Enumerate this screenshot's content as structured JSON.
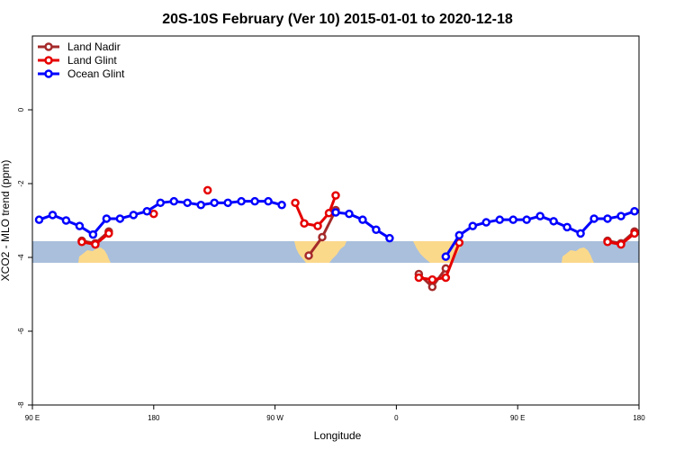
{
  "chart_data": {
    "type": "line",
    "title": "20S-10S February (Ver 10)   2015-01-01 to 2020-12-18",
    "xlabel": "Longitude",
    "ylabel": "XCO2 - MLO trend (ppm)",
    "xlim": [
      -90,
      180
    ],
    "ylim": [
      -8,
      2
    ],
    "x_ticks": [
      {
        "value": -90,
        "label": "90 E"
      },
      {
        "value": -36,
        "label": "180"
      },
      {
        "value": 18,
        "label": "90 W"
      },
      {
        "value": 72,
        "label": "0"
      },
      {
        "value": 126,
        "label": "90 E"
      },
      {
        "value": 180,
        "label": "180"
      }
    ],
    "y_ticks": [
      0,
      -2,
      -4,
      -6,
      -8
    ],
    "legend_position": "top-left",
    "series": [
      {
        "name": "Land Nadir",
        "color": "#a52a2a",
        "segments": [
          [
            [
              -68,
              -3.55
            ],
            [
              -62,
              -3.62
            ],
            [
              -56,
              -3.3
            ]
          ],
          [
            [
              33,
              -3.95
            ],
            [
              39,
              -3.45
            ],
            [
              45,
              -2.72
            ]
          ],
          [
            [
              82,
              -4.45
            ],
            [
              88,
              -4.8
            ],
            [
              94,
              -4.3
            ]
          ],
          [
            [
              166,
              -3.55
            ],
            [
              172,
              -3.62
            ],
            [
              178,
              -3.3
            ]
          ]
        ]
      },
      {
        "name": "Land Glint",
        "color": "#e60000",
        "segments": [
          [
            [
              -68,
              -3.58
            ],
            [
              -62,
              -3.65
            ],
            [
              -56,
              -3.35
            ]
          ],
          [
            [
              -36,
              -2.82
            ]
          ],
          [
            [
              -12,
              -2.18
            ]
          ],
          [
            [
              27,
              -2.52
            ],
            [
              31,
              -3.08
            ],
            [
              37,
              -3.15
            ],
            [
              42,
              -2.8
            ],
            [
              45,
              -2.32
            ]
          ],
          [
            [
              82,
              -4.55
            ],
            [
              88,
              -4.6
            ],
            [
              94,
              -4.55
            ],
            [
              100,
              -3.6
            ]
          ],
          [
            [
              166,
              -3.58
            ],
            [
              172,
              -3.65
            ],
            [
              178,
              -3.35
            ]
          ]
        ]
      },
      {
        "name": "Ocean Glint",
        "color": "#0000ff",
        "segments": [
          [
            [
              -87,
              -2.98
            ],
            [
              -81,
              -2.85
            ],
            [
              -75,
              -3.0
            ],
            [
              -69,
              -3.15
            ],
            [
              -63,
              -3.38
            ],
            [
              -57,
              -2.95
            ],
            [
              -51,
              -2.95
            ],
            [
              -45,
              -2.85
            ],
            [
              -39,
              -2.75
            ],
            [
              -33,
              -2.52
            ],
            [
              -27,
              -2.48
            ],
            [
              -21,
              -2.52
            ],
            [
              -15,
              -2.58
            ],
            [
              -9,
              -2.52
            ],
            [
              -3,
              -2.52
            ],
            [
              3,
              -2.48
            ],
            [
              9,
              -2.48
            ],
            [
              15,
              -2.48
            ],
            [
              21,
              -2.58
            ]
          ],
          [
            [
              45,
              -2.78
            ],
            [
              51,
              -2.82
            ],
            [
              57,
              -2.98
            ],
            [
              63,
              -3.25
            ],
            [
              69,
              -3.48
            ]
          ],
          [
            [
              94,
              -3.98
            ],
            [
              100,
              -3.4
            ],
            [
              106,
              -3.15
            ],
            [
              112,
              -3.05
            ],
            [
              118,
              -2.98
            ],
            [
              124,
              -2.98
            ],
            [
              130,
              -2.98
            ],
            [
              136,
              -2.88
            ],
            [
              142,
              -3.02
            ],
            [
              148,
              -3.18
            ],
            [
              154,
              -3.35
            ],
            [
              160,
              -2.95
            ],
            [
              166,
              -2.95
            ],
            [
              172,
              -2.88
            ],
            [
              178,
              -2.75
            ]
          ]
        ]
      }
    ]
  }
}
